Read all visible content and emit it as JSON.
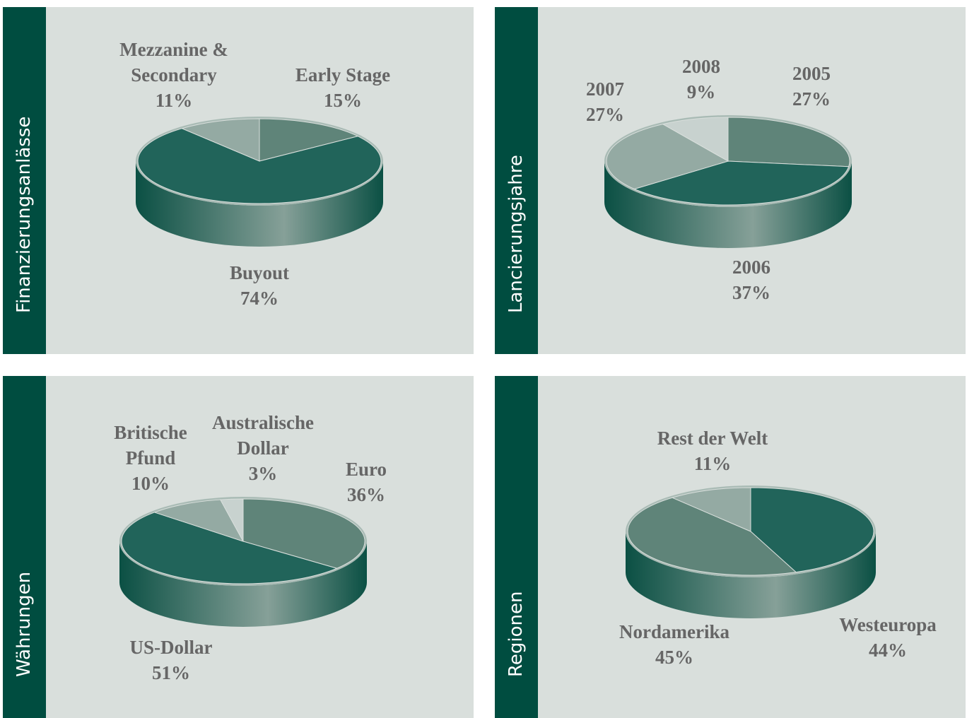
{
  "chart_data": [
    {
      "type": "pie",
      "title": "Finanzierungsanlässe",
      "categories": [
        "Early Stage",
        "Buyout",
        "Mezzanine & Secondary"
      ],
      "values": [
        15,
        74,
        11
      ],
      "value_labels": [
        "15%",
        "74%",
        "11%"
      ],
      "colors": [
        "#5f8479",
        "#21645a",
        "#94aaa3"
      ]
    },
    {
      "type": "pie",
      "title": "Lancierungsjahre",
      "categories": [
        "2005",
        "2006",
        "2007",
        "2008"
      ],
      "values": [
        27,
        37,
        27,
        9
      ],
      "value_labels": [
        "27%",
        "37%",
        "27%",
        "9%"
      ],
      "colors": [
        "#5f8479",
        "#21645a",
        "#94aaa3",
        "#c8d2cf"
      ]
    },
    {
      "type": "pie",
      "title": "Währungen",
      "categories": [
        "Euro",
        "US-Dollar",
        "Britische Pfund",
        "Australische Dollar"
      ],
      "values": [
        36,
        51,
        10,
        3
      ],
      "value_labels": [
        "36%",
        "51%",
        "10%",
        "3%"
      ],
      "colors": [
        "#5f8479",
        "#21645a",
        "#94aaa3",
        "#c8d2cf"
      ]
    },
    {
      "type": "pie",
      "title": "Regionen",
      "categories": [
        "Westeuropa",
        "Nordamerika",
        "Rest der Welt"
      ],
      "values": [
        44,
        45,
        11
      ],
      "value_labels": [
        "44%",
        "45%",
        "11%"
      ],
      "colors": [
        "#21645a",
        "#5f8479",
        "#94aaa3"
      ]
    }
  ]
}
